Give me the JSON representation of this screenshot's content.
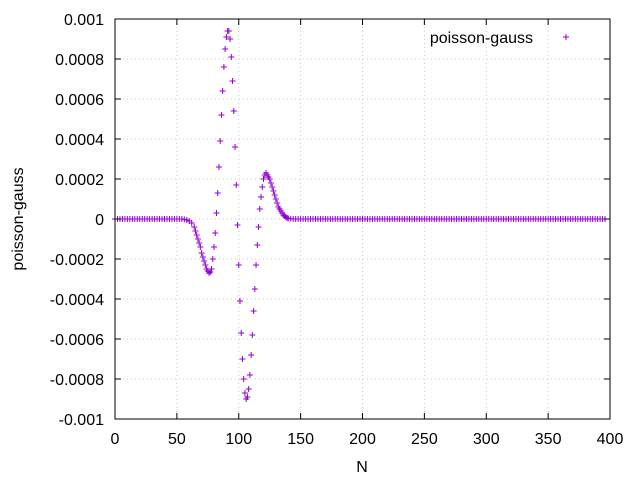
{
  "chart_data": {
    "type": "scatter",
    "xlabel": "N",
    "ylabel": "poisson-gauss",
    "xlim": [
      0,
      400
    ],
    "ylim": [
      -0.001,
      0.001
    ],
    "x_ticks": [
      0,
      50,
      100,
      150,
      200,
      250,
      300,
      350,
      400
    ],
    "x_tick_labels": [
      "0",
      "50",
      "100",
      "150",
      "200",
      "250",
      "300",
      "350",
      "400"
    ],
    "y_ticks": [
      -0.001,
      -0.0008,
      -0.0006,
      -0.0004,
      -0.0002,
      0,
      0.0002,
      0.0004,
      0.0006,
      0.0008,
      0.001
    ],
    "y_tick_labels": [
      "-0.001",
      "-0.0008",
      "-0.0006",
      "-0.0004",
      "-0.0002",
      "0",
      "0.0002",
      "0.0004",
      "0.0006",
      "0.0008",
      "0.001"
    ],
    "grid": true,
    "legend_position": "top-right",
    "series": [
      {
        "name": "poisson-gauss",
        "color": "#9400d3",
        "marker": "plus",
        "points": [
          [
            0,
            0
          ],
          [
            2,
            0
          ],
          [
            4,
            0
          ],
          [
            6,
            0
          ],
          [
            8,
            0
          ],
          [
            10,
            0
          ],
          [
            12,
            0
          ],
          [
            14,
            0
          ],
          [
            16,
            0
          ],
          [
            18,
            0
          ],
          [
            20,
            0
          ],
          [
            22,
            0
          ],
          [
            24,
            0
          ],
          [
            26,
            0
          ],
          [
            28,
            0
          ],
          [
            30,
            0
          ],
          [
            32,
            0
          ],
          [
            34,
            0
          ],
          [
            36,
            0
          ],
          [
            38,
            0
          ],
          [
            40,
            0
          ],
          [
            42,
            0
          ],
          [
            44,
            0
          ],
          [
            46,
            0
          ],
          [
            48,
            0
          ],
          [
            50,
            0
          ],
          [
            52,
            0
          ],
          [
            54,
            0
          ],
          [
            56,
            -2e-06
          ],
          [
            58,
            -5e-06
          ],
          [
            60,
            -1e-05
          ],
          [
            62,
            -2e-05
          ],
          [
            64,
            -4e-05
          ],
          [
            65,
            -6e-05
          ],
          [
            66,
            -8e-05
          ],
          [
            67,
            -0.0001
          ],
          [
            68,
            -0.00012
          ],
          [
            69,
            -0.00014
          ],
          [
            70,
            -0.00017
          ],
          [
            71,
            -0.00019
          ],
          [
            72,
            -0.00021
          ],
          [
            73,
            -0.00023
          ],
          [
            74,
            -0.00025
          ],
          [
            75,
            -0.00026
          ],
          [
            76,
            -0.00027
          ],
          [
            77,
            -0.000265
          ],
          [
            78,
            -0.00025
          ],
          [
            79,
            -0.0002
          ],
          [
            80,
            -0.00014
          ],
          [
            81,
            -7e-05
          ],
          [
            82,
            3e-05
          ],
          [
            83,
            0.00013
          ],
          [
            84,
            0.00026
          ],
          [
            85,
            0.00039
          ],
          [
            86,
            0.00052
          ],
          [
            87,
            0.00064
          ],
          [
            88,
            0.00076
          ],
          [
            89,
            0.00085
          ],
          [
            90,
            0.00091
          ],
          [
            91,
            0.00094
          ],
          [
            92,
            0.00094
          ],
          [
            93,
            0.0009
          ],
          [
            94,
            0.00081
          ],
          [
            95,
            0.00069
          ],
          [
            96,
            0.00054
          ],
          [
            97,
            0.00036
          ],
          [
            98,
            0.00017
          ],
          [
            99,
            -3e-05
          ],
          [
            100,
            -0.00023
          ],
          [
            101,
            -0.00041
          ],
          [
            102,
            -0.00057
          ],
          [
            103,
            -0.0007
          ],
          [
            104,
            -0.0008
          ],
          [
            105,
            -0.00087
          ],
          [
            106,
            -0.0009
          ],
          [
            107,
            -0.00089
          ],
          [
            108,
            -0.00085
          ],
          [
            109,
            -0.00078
          ],
          [
            110,
            -0.00068
          ],
          [
            111,
            -0.00058
          ],
          [
            112,
            -0.00046
          ],
          [
            113,
            -0.00035
          ],
          [
            114,
            -0.00023
          ],
          [
            115,
            -0.00013
          ],
          [
            116,
            -4e-05
          ],
          [
            117,
            5e-05
          ],
          [
            118,
            0.00011
          ],
          [
            119,
            0.00016
          ],
          [
            120,
            0.0002
          ],
          [
            121,
            0.00022
          ],
          [
            122,
            0.00023
          ],
          [
            123,
            0.00022
          ],
          [
            124,
            0.00021
          ],
          [
            125,
            0.0002
          ],
          [
            126,
            0.00018
          ],
          [
            127,
            0.00016
          ],
          [
            128,
            0.00014
          ],
          [
            129,
            0.00012
          ],
          [
            130,
            0.0001
          ],
          [
            131,
            8e-05
          ],
          [
            132,
            6e-05
          ],
          [
            133,
            5e-05
          ],
          [
            134,
            4e-05
          ],
          [
            135,
            3e-05
          ],
          [
            136,
            2e-05
          ],
          [
            137,
            1.5e-05
          ],
          [
            138,
            1e-05
          ],
          [
            139,
            5e-06
          ],
          [
            140,
            3e-06
          ],
          [
            142,
            1e-06
          ],
          [
            144,
            0
          ],
          [
            146,
            0
          ],
          [
            148,
            0
          ],
          [
            150,
            0
          ],
          [
            152,
            0
          ],
          [
            154,
            0
          ],
          [
            156,
            0
          ],
          [
            158,
            0
          ],
          [
            160,
            0
          ],
          [
            162,
            0
          ],
          [
            164,
            0
          ],
          [
            166,
            0
          ],
          [
            168,
            0
          ],
          [
            170,
            0
          ],
          [
            172,
            0
          ],
          [
            174,
            0
          ],
          [
            176,
            0
          ],
          [
            178,
            0
          ],
          [
            180,
            0
          ],
          [
            182,
            0
          ],
          [
            184,
            0
          ],
          [
            186,
            0
          ],
          [
            188,
            0
          ],
          [
            190,
            0
          ],
          [
            192,
            0
          ],
          [
            194,
            0
          ],
          [
            196,
            0
          ],
          [
            198,
            0
          ],
          [
            200,
            0
          ],
          [
            202,
            0
          ],
          [
            204,
            0
          ],
          [
            206,
            0
          ],
          [
            208,
            0
          ],
          [
            210,
            0
          ],
          [
            212,
            0
          ],
          [
            214,
            0
          ],
          [
            216,
            0
          ],
          [
            218,
            0
          ],
          [
            220,
            0
          ],
          [
            222,
            0
          ],
          [
            224,
            0
          ],
          [
            226,
            0
          ],
          [
            228,
            0
          ],
          [
            230,
            0
          ],
          [
            232,
            0
          ],
          [
            234,
            0
          ],
          [
            236,
            0
          ],
          [
            238,
            0
          ],
          [
            240,
            0
          ],
          [
            242,
            0
          ],
          [
            244,
            0
          ],
          [
            246,
            0
          ],
          [
            248,
            0
          ],
          [
            250,
            0
          ],
          [
            252,
            0
          ],
          [
            254,
            0
          ],
          [
            256,
            0
          ],
          [
            258,
            0
          ],
          [
            260,
            0
          ],
          [
            262,
            0
          ],
          [
            264,
            0
          ],
          [
            266,
            0
          ],
          [
            268,
            0
          ],
          [
            270,
            0
          ],
          [
            272,
            0
          ],
          [
            274,
            0
          ],
          [
            276,
            0
          ],
          [
            278,
            0
          ],
          [
            280,
            0
          ],
          [
            282,
            0
          ],
          [
            284,
            0
          ],
          [
            286,
            0
          ],
          [
            288,
            0
          ],
          [
            290,
            0
          ],
          [
            292,
            0
          ],
          [
            294,
            0
          ],
          [
            296,
            0
          ],
          [
            298,
            0
          ],
          [
            300,
            0
          ],
          [
            302,
            0
          ],
          [
            304,
            0
          ],
          [
            306,
            0
          ],
          [
            308,
            0
          ],
          [
            310,
            0
          ],
          [
            312,
            0
          ],
          [
            314,
            0
          ],
          [
            316,
            0
          ],
          [
            318,
            0
          ],
          [
            320,
            0
          ],
          [
            322,
            0
          ],
          [
            324,
            0
          ],
          [
            326,
            0
          ],
          [
            328,
            0
          ],
          [
            330,
            0
          ],
          [
            332,
            0
          ],
          [
            334,
            0
          ],
          [
            336,
            0
          ],
          [
            338,
            0
          ],
          [
            340,
            0
          ],
          [
            342,
            0
          ],
          [
            344,
            0
          ],
          [
            346,
            0
          ],
          [
            348,
            0
          ],
          [
            350,
            0
          ],
          [
            352,
            0
          ],
          [
            354,
            0
          ],
          [
            356,
            0
          ],
          [
            358,
            0
          ],
          [
            360,
            0
          ],
          [
            362,
            0
          ],
          [
            364,
            0
          ],
          [
            366,
            0
          ],
          [
            368,
            0
          ],
          [
            370,
            0
          ],
          [
            372,
            0
          ],
          [
            374,
            0
          ],
          [
            376,
            0
          ],
          [
            378,
            0
          ],
          [
            380,
            0
          ],
          [
            382,
            0
          ],
          [
            384,
            0
          ],
          [
            386,
            0
          ],
          [
            388,
            0
          ],
          [
            390,
            0
          ],
          [
            392,
            0
          ],
          [
            394,
            0
          ],
          [
            396,
            0
          ]
        ]
      }
    ]
  }
}
